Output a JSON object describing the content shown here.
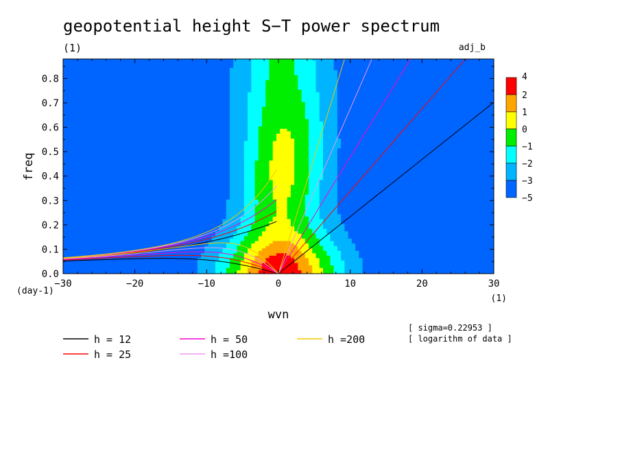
{
  "chart_data": {
    "type": "heatmap",
    "title": "geopotential height S−T power spectrum",
    "subtitle_left": "(1)",
    "subtitle_right": "adj_b",
    "xlabel": "wvn",
    "ylabel": "freq",
    "x_unit": "(1)",
    "y_unit": "(day-1)",
    "xlim": [
      -30,
      30
    ],
    "ylim": [
      0,
      0.88
    ],
    "xticks": [
      -30,
      -20,
      -10,
      0,
      10,
      20,
      30
    ],
    "xtick_labels": [
      "−30",
      "−20",
      "−10",
      "0",
      "10",
      "20",
      "30"
    ],
    "yticks": [
      0.0,
      0.1,
      0.2,
      0.3,
      0.4,
      0.5,
      0.6,
      0.7,
      0.8
    ],
    "ytick_labels": [
      "0.0",
      "0.1",
      "0.2",
      "0.3",
      "0.4",
      "0.5",
      "0.6",
      "0.7",
      "0.8"
    ],
    "colorbar": {
      "levels": [
        "4",
        "2",
        "1",
        "0",
        "−1",
        "−2",
        "−3",
        "−5"
      ],
      "colors": [
        "#ff0000",
        "#ffa500",
        "#ffff00",
        "#00ee00",
        "#00ffff",
        "#00b4ff",
        "#0064ff"
      ]
    },
    "contour_fields": {
      "fill_colors_low_to_high": [
        "#0064ff",
        "#00b4ff",
        "#00ffff",
        "#00ee00",
        "#ffff00",
        "#ffa500",
        "#ff0000"
      ],
      "band_boundaries": [
        "-3",
        "-2",
        "-1",
        "0",
        "1",
        "2"
      ]
    },
    "dispersion_curves": [
      {
        "name": "h = 12",
        "h": 12,
        "color": "#000000"
      },
      {
        "name": "h = 25",
        "h": 25,
        "color": "#ff0000"
      },
      {
        "name": "h = 50",
        "h": 50,
        "color": "#ff00cc"
      },
      {
        "name": "h =100",
        "h": 100,
        "color": "#ee99ee"
      },
      {
        "name": "h =200",
        "h": 200,
        "color": "#f0c800"
      }
    ],
    "annotations": [
      "[ sigma=0.22953 ]",
      "[ logarithm of data ]"
    ]
  }
}
